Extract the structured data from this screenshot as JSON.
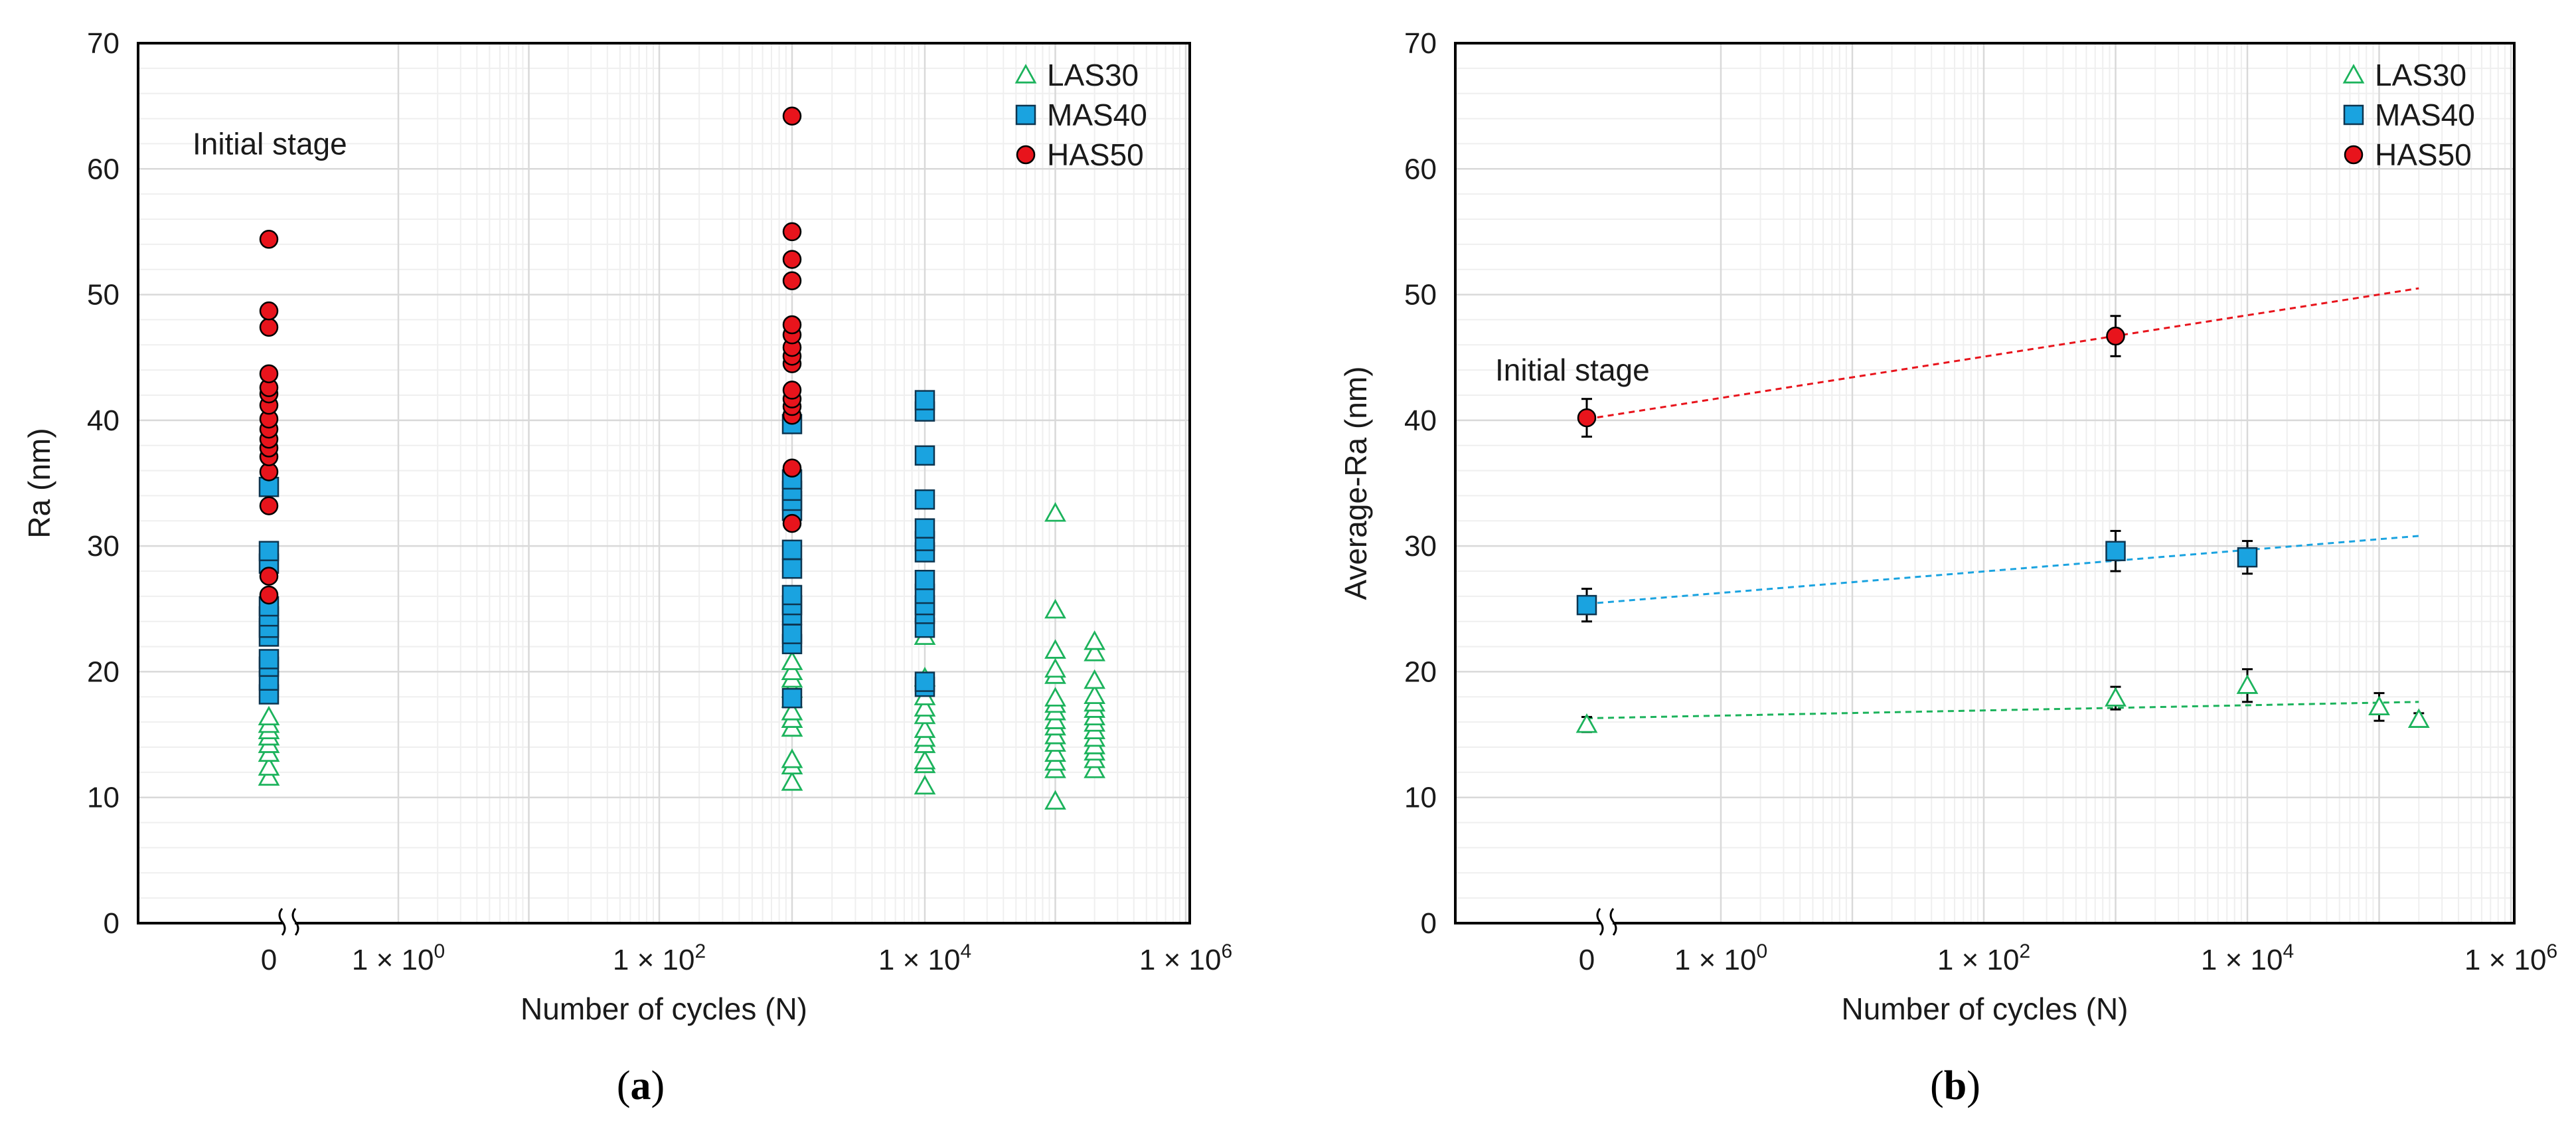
{
  "colors": {
    "LAS30": "#1cb35c",
    "MAS40": "#1aa3e0",
    "HAS50": "#e8141c",
    "grid": "#d9d9d9",
    "minor_grid": "#efefef",
    "axis": "#000000"
  },
  "chart_data": [
    {
      "panel": "a",
      "panel_label_open": "(",
      "panel_label_letter": "a",
      "panel_label_close": ")",
      "type": "scatter",
      "xscale": "log with broken axis at 0",
      "xlabel": "Number of cycles (N)",
      "ylabel": "Ra (nm)",
      "ylim": [
        0,
        70
      ],
      "yticks": [
        "0",
        "10",
        "20",
        "30",
        "40",
        "50",
        "60",
        "70"
      ],
      "xticks": [
        {
          "label": "0",
          "value": 0
        },
        {
          "label": "1 × 10",
          "sup": "0",
          "value": 1
        },
        {
          "label": "1 × 10",
          "sup": "2",
          "value": 100
        },
        {
          "label": "1 × 10",
          "sup": "4",
          "value": 10000
        },
        {
          "label": "1 × 10",
          "sup": "6",
          "value": 1000000
        }
      ],
      "annotation": "Initial stage",
      "legend": [
        "LAS30",
        "MAS40",
        "HAS50"
      ],
      "series": [
        {
          "name": "LAS30",
          "marker": "triangle-open",
          "points": [
            {
              "x": 0,
              "y": [
                11.6,
                12.4,
                13.5,
                14.2,
                14.8,
                15.3,
                15.8,
                16.4
              ]
            },
            {
              "x": 1000,
              "y": [
                11.2,
                12.5,
                13.0,
                15.5,
                16.2,
                16.8,
                17.8,
                18.6,
                19.4,
                20.0,
                20.8
              ]
            },
            {
              "x": 10000,
              "y": [
                10.9,
                12.6,
                12.9,
                14.2,
                14.7,
                15.4,
                16.5,
                17.1,
                18.0,
                19.5,
                22.8
              ]
            },
            {
              "x": 100000,
              "y": [
                9.7,
                12.2,
                12.8,
                13.5,
                14.3,
                14.9,
                15.6,
                16.1,
                16.8,
                17.4,
                17.9,
                19.7,
                20.2,
                21.7,
                24.9,
                32.6
              ]
            },
            {
              "x": 200000,
              "y": [
                12.2,
                13.0,
                13.6,
                14.1,
                14.7,
                15.3,
                15.9,
                16.4,
                17.0,
                17.5,
                18.1,
                19.3,
                21.5,
                22.4
              ]
            }
          ]
        },
        {
          "name": "MAS40",
          "marker": "square",
          "points": [
            {
              "x": 0,
              "y": [
                18.2,
                19.3,
                20.4,
                21.0,
                22.8,
                23.5,
                24.4,
                25.2,
                28.6,
                29.6,
                34.7
              ]
            },
            {
              "x": 1000,
              "y": [
                17.9,
                22.2,
                23.0,
                24.5,
                25.3,
                26.1,
                28.2,
                29.7,
                32.8,
                33.6,
                34.4,
                35.3,
                39.7
              ]
            },
            {
              "x": 10000,
              "y": [
                18.8,
                19.2,
                23.5,
                24.6,
                25.3,
                26.2,
                27.3,
                29.5,
                30.4,
                31.4,
                33.7,
                37.2,
                40.7,
                41.6
              ]
            }
          ]
        },
        {
          "name": "HAS50",
          "marker": "circle",
          "points": [
            {
              "x": 0,
              "y": [
                26.1,
                27.6,
                33.2,
                35.9,
                37.1,
                37.8,
                38.5,
                39.3,
                40.1,
                41.2,
                42.1,
                42.6,
                43.7,
                47.4,
                48.7,
                54.4
              ]
            },
            {
              "x": 1000,
              "y": [
                31.8,
                36.2,
                40.4,
                41.1,
                41.7,
                42.4,
                44.5,
                45.1,
                45.8,
                46.8,
                47.6,
                51.1,
                52.8,
                55.0,
                64.2
              ]
            }
          ]
        }
      ]
    },
    {
      "panel": "b",
      "panel_label_open": "(",
      "panel_label_letter": "b",
      "panel_label_close": ")",
      "type": "scatter",
      "xscale": "log with broken axis at 0",
      "xlabel": "Number of cycles (N)",
      "ylabel": "Average-Ra (nm)",
      "ylim": [
        0,
        70
      ],
      "yticks": [
        "0",
        "10",
        "20",
        "30",
        "40",
        "50",
        "60",
        "70"
      ],
      "xticks": [
        {
          "label": "0",
          "value": 0
        },
        {
          "label": "1 × 10",
          "sup": "0",
          "value": 1
        },
        {
          "label": "1 × 10",
          "sup": "2",
          "value": 100
        },
        {
          "label": "1 × 10",
          "sup": "4",
          "value": 10000
        },
        {
          "label": "1 × 10",
          "sup": "6",
          "value": 1000000
        }
      ],
      "annotation": "Initial stage",
      "legend": [
        "LAS30",
        "MAS40",
        "HAS50"
      ],
      "series": [
        {
          "name": "LAS30",
          "marker": "triangle-open",
          "points": [
            {
              "x": 0,
              "y": 15.8,
              "err": 0.6
            },
            {
              "x": 1000,
              "y": 17.9,
              "err": 0.9
            },
            {
              "x": 10000,
              "y": 18.9,
              "err": 1.3
            },
            {
              "x": 100000,
              "y": 17.2,
              "err": 1.1
            },
            {
              "x": 200000,
              "y": 16.2,
              "err": 0.5
            }
          ],
          "trend": [
            {
              "x": 0,
              "y": 16.3
            },
            {
              "x": 200000,
              "y": 17.6
            }
          ]
        },
        {
          "name": "MAS40",
          "marker": "square",
          "points": [
            {
              "x": 0,
              "y": 25.3,
              "err": 1.3
            },
            {
              "x": 1000,
              "y": 29.6,
              "err": 1.6
            },
            {
              "x": 10000,
              "y": 29.1,
              "err": 1.3
            }
          ],
          "trend": [
            {
              "x": 0,
              "y": 25.4
            },
            {
              "x": 200000,
              "y": 30.8
            }
          ]
        },
        {
          "name": "HAS50",
          "marker": "circle",
          "points": [
            {
              "x": 0,
              "y": 40.2,
              "err": 1.5
            },
            {
              "x": 1000,
              "y": 46.7,
              "err": 1.6
            }
          ],
          "trend": [
            {
              "x": 0,
              "y": 40.1
            },
            {
              "x": 200000,
              "y": 50.5
            }
          ]
        }
      ]
    }
  ]
}
